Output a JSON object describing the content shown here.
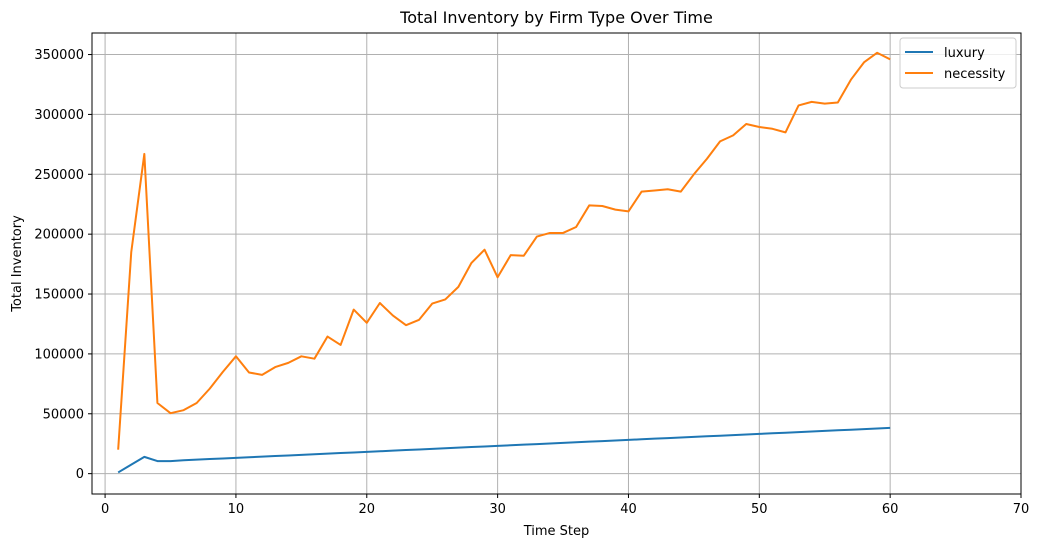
{
  "chart_data": {
    "type": "line",
    "title": "Total Inventory by Firm Type Over Time",
    "xlabel": "Time Step",
    "ylabel": "Total Inventory",
    "xlim": [
      -1,
      70
    ],
    "ylim": [
      -17000,
      368000
    ],
    "xticks": [
      0,
      10,
      20,
      30,
      40,
      50,
      60,
      70
    ],
    "yticks": [
      0,
      50000,
      100000,
      150000,
      200000,
      250000,
      300000,
      350000
    ],
    "grid": true,
    "legend_position": "upper-right",
    "x": [
      1,
      2,
      3,
      4,
      5,
      6,
      7,
      8,
      9,
      10,
      11,
      12,
      13,
      14,
      15,
      16,
      17,
      18,
      19,
      20,
      21,
      22,
      23,
      24,
      25,
      26,
      27,
      28,
      29,
      30,
      31,
      32,
      33,
      34,
      35,
      36,
      37,
      38,
      39,
      40,
      41,
      42,
      43,
      44,
      45,
      46,
      47,
      48,
      49,
      50,
      51,
      52,
      53,
      54,
      55,
      56,
      57,
      58,
      59,
      60
    ],
    "series": [
      {
        "name": "luxury",
        "color": "#1f77b4",
        "values": [
          1000,
          7500,
          14000,
          10500,
          10500,
          11200,
          11700,
          12200,
          12700,
          13200,
          13700,
          14200,
          14700,
          15200,
          15700,
          16200,
          16700,
          17200,
          17700,
          18200,
          18700,
          19200,
          19700,
          20200,
          20700,
          21200,
          21700,
          22200,
          22700,
          23200,
          23700,
          24200,
          24700,
          25200,
          25700,
          26200,
          26700,
          27200,
          27700,
          28200,
          28700,
          29200,
          29700,
          30200,
          30700,
          31200,
          31700,
          32200,
          32700,
          33200,
          33700,
          34200,
          34700,
          35200,
          35700,
          36200,
          36700,
          37200,
          37700,
          38200
        ]
      },
      {
        "name": "necessity",
        "color": "#ff7f0e",
        "values": [
          20000,
          185000,
          267000,
          59000,
          50500,
          53000,
          59000,
          71000,
          85000,
          98000,
          84500,
          82500,
          89000,
          92500,
          98000,
          96000,
          114500,
          107500,
          137000,
          126000,
          142500,
          132000,
          124000,
          128500,
          142000,
          145500,
          156000,
          176000,
          187000,
          164000,
          182500,
          182000,
          198000,
          201000,
          201000,
          206000,
          224000,
          223500,
          220500,
          219000,
          235500,
          236500,
          237500,
          235500,
          250000,
          263000,
          277500,
          282500,
          292000,
          289500,
          288000,
          285000,
          307500,
          310500,
          309000,
          310000,
          329000,
          343500,
          351500,
          346000
        ]
      }
    ]
  }
}
